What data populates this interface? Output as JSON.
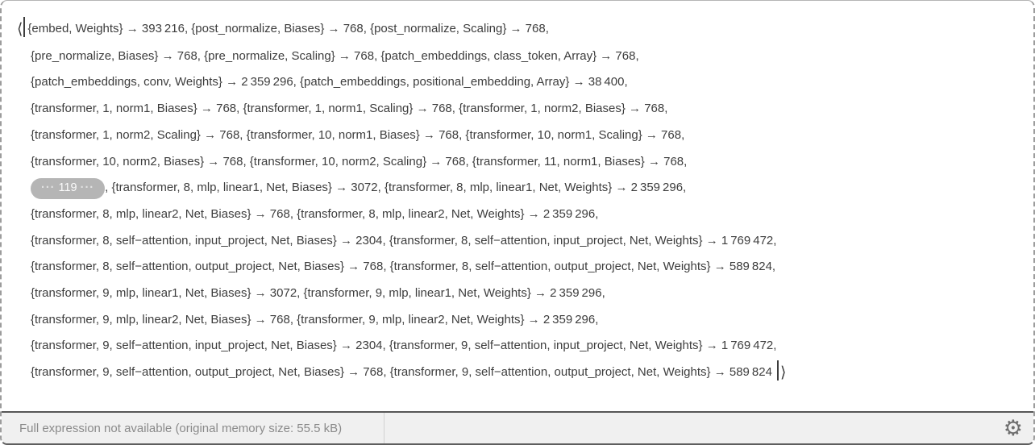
{
  "colors": {
    "border": "#5e5e5e",
    "side_dash": "#9c9c9c",
    "text": "#3d3d3d",
    "badge_bg": "#b5b5b5",
    "footer_bg": "#f0f0f0",
    "footer_text": "#8a8a8a"
  },
  "expression": {
    "open_angle": "⟨",
    "close_angle": "⟩",
    "badge": {
      "dots_left": "···",
      "count": "119",
      "dots_right": "···"
    },
    "lines": [
      {
        "open": true,
        "text": "{embed, Weights} → 393 216, {post_normalize, Biases} → 768, {post_normalize, Scaling} → 768,"
      },
      {
        "text": "{pre_normalize, Biases} → 768, {pre_normalize, Scaling} → 768, {patch_embeddings, class_token, Array} → 768,"
      },
      {
        "text": "{patch_embeddings, conv, Weights} → 2 359 296, {patch_embeddings, positional_embedding, Array} → 38 400,"
      },
      {
        "text": "{transformer, 1, norm1, Biases} → 768, {transformer, 1, norm1, Scaling} → 768, {transformer, 1, norm2, Biases} → 768,"
      },
      {
        "text": "{transformer, 1, norm2, Scaling} → 768, {transformer, 10, norm1, Biases} → 768, {transformer, 10, norm1, Scaling} → 768,"
      },
      {
        "text": "{transformer, 10, norm2, Biases} → 768, {transformer, 10, norm2, Scaling} → 768, {transformer, 11, norm1, Biases} → 768,"
      },
      {
        "badge": true,
        "text": ", {transformer, 8, mlp, linear1, Net, Biases} → 3072, {transformer, 8, mlp, linear1, Net, Weights} → 2 359 296,"
      },
      {
        "text": "{transformer, 8, mlp, linear2, Net, Biases} → 768, {transformer, 8, mlp, linear2, Net, Weights} → 2 359 296,"
      },
      {
        "text": "{transformer, 8, self−attention, input_project, Net, Biases} → 2304, {transformer, 8, self−attention, input_project, Net, Weights} → 1 769 472,"
      },
      {
        "text": "{transformer, 8, self−attention, output_project, Net, Biases} → 768, {transformer, 8, self−attention, output_project, Net, Weights} → 589 824,"
      },
      {
        "text": "{transformer, 9, mlp, linear1, Net, Biases} → 3072, {transformer, 9, mlp, linear1, Net, Weights} → 2 359 296,"
      },
      {
        "text": "{transformer, 9, mlp, linear2, Net, Biases} → 768, {transformer, 9, mlp, linear2, Net, Weights} → 2 359 296,"
      },
      {
        "text": "{transformer, 9, self−attention, input_project, Net, Biases} → 2304, {transformer, 9, self−attention, input_project, Net, Weights} → 1 769 472,"
      },
      {
        "close": true,
        "text": "{transformer, 9, self−attention, output_project, Net, Biases} → 768, {transformer, 9, self−attention, output_project, Net, Weights} → 589 824"
      }
    ]
  },
  "footer": {
    "status": "Full expression not available (original memory size: 55.5 kB)",
    "gear": "⚙"
  }
}
